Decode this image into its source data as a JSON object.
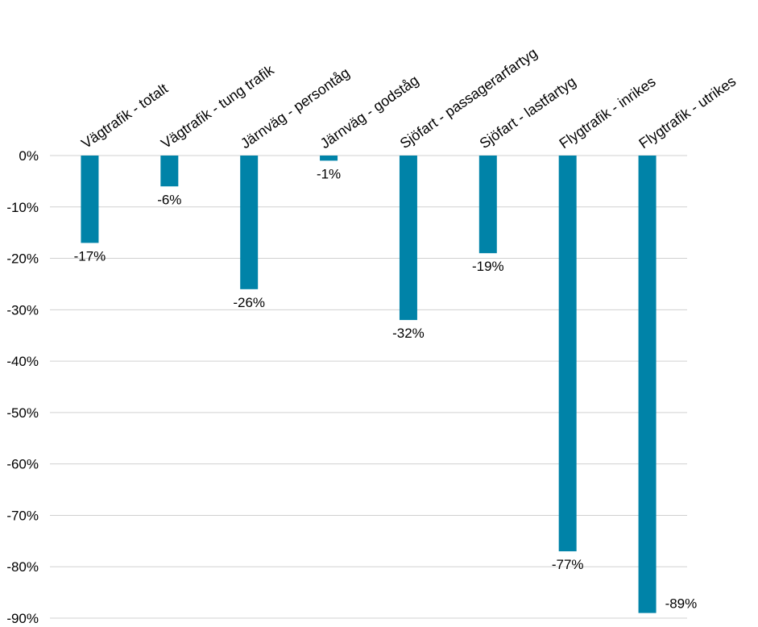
{
  "chart_data": {
    "type": "bar",
    "categories": [
      "Vägtrafik - totalt",
      "Vägtrafik - tung trafik",
      "Järnväg - persontåg",
      "Järnväg - godståg",
      "Sjöfart - passagerarfartyg",
      "Sjöfart - lastfartyg",
      "Flygtrafik - inrikes",
      "Flygtrafik - utrikes"
    ],
    "values": [
      -17,
      -6,
      -26,
      -1,
      -32,
      -19,
      -77,
      -89
    ],
    "data_labels": [
      "-17%",
      "-6%",
      "-26%",
      "-1%",
      "-32%",
      "-19%",
      "-77%",
      "-89%"
    ],
    "y_ticks": [
      0,
      -10,
      -20,
      -30,
      -40,
      -50,
      -60,
      -70,
      -80,
      -90
    ],
    "y_tick_labels": [
      "0%",
      "-10%",
      "-20%",
      "-30%",
      "-40%",
      "-50%",
      "-60%",
      "-70%",
      "-80%",
      "-90%"
    ],
    "ylim": [
      -90,
      0
    ],
    "grid": true,
    "legend": "none",
    "bar_color": "#0083a8",
    "title": "",
    "xlabel": "",
    "ylabel": ""
  }
}
